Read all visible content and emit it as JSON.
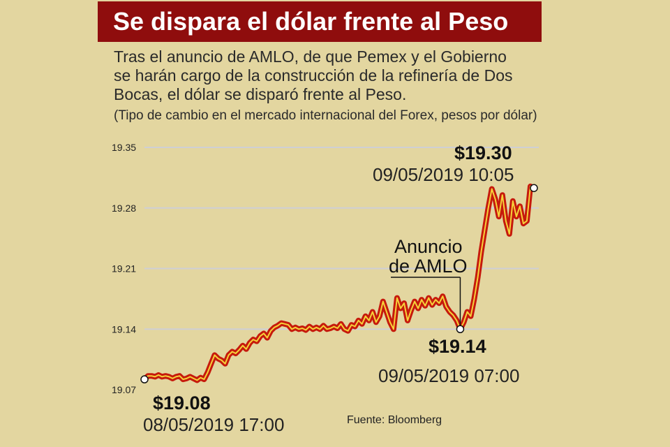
{
  "header": {
    "title": "Se dispara el dólar frente al Peso",
    "subtitle_lines": [
      "Tras el anuncio de AMLO, de que Pemex y el Gobierno",
      "se harán cargo de la construcción de la refinería de Dos",
      "Bocas, el dólar se disparó frente al Peso."
    ],
    "note": "(Tipo de cambio en el mercado internacional del Forex, pesos por dólar)"
  },
  "colors": {
    "background": "#e3d6a0",
    "title_bg": "#8f0d0d",
    "line_outer": "#c61a0c",
    "line_inner": "#f6d23a",
    "grid": "#cfcfd4"
  },
  "chart_data": {
    "type": "line",
    "y_ticks": [
      "19.35",
      "19.28",
      "19.21",
      "19.14",
      "19.07"
    ],
    "ylim": [
      19.07,
      19.35
    ],
    "x_start": "08/05/2019 17:00",
    "x_end": "09/05/2019 10:05",
    "series": [
      {
        "values": [
          19.082,
          19.086,
          19.086,
          19.085,
          19.087,
          19.085,
          19.086,
          19.085,
          19.083,
          19.085,
          19.086,
          19.082,
          19.083,
          19.085,
          19.083,
          19.081,
          19.084,
          19.082,
          19.09,
          19.1,
          19.11,
          19.106,
          19.104,
          19.1,
          19.11,
          19.114,
          19.112,
          19.116,
          19.121,
          19.117,
          19.124,
          19.128,
          19.126,
          19.132,
          19.135,
          19.13,
          19.138,
          19.142,
          19.144,
          19.147,
          19.146,
          19.145,
          19.14,
          19.142,
          19.14,
          19.141,
          19.139,
          19.143,
          19.14,
          19.142,
          19.14,
          19.144,
          19.14,
          19.141,
          19.143,
          19.141,
          19.146,
          19.14,
          19.138,
          19.145,
          19.143,
          19.15,
          19.146,
          19.155,
          19.15,
          19.16,
          19.148,
          19.155,
          19.172,
          19.16,
          19.148,
          19.14,
          19.176,
          19.164,
          19.17,
          19.15,
          19.162,
          19.172,
          19.164,
          19.174,
          19.167,
          19.176,
          19.168,
          19.174,
          19.17,
          19.178,
          19.166,
          19.16,
          19.156,
          19.15,
          19.14,
          19.148,
          19.16,
          19.155,
          19.175,
          19.2,
          19.23,
          19.255,
          19.28,
          19.302,
          19.29,
          19.27,
          19.295,
          19.265,
          19.25,
          19.288,
          19.27,
          19.282,
          19.262,
          19.265,
          19.305,
          19.303
        ]
      }
    ],
    "annotations": {
      "start_value": "$19.08",
      "start_date": "08/05/2019 17:00",
      "min_value": "$19.14",
      "min_date": "09/05/2019 07:00",
      "end_value": "$19.30",
      "end_date": "09/05/2019 10:05",
      "event_label_line1": "Anuncio",
      "event_label_line2": "de AMLO"
    },
    "source": "Fuente: Bloomberg"
  }
}
